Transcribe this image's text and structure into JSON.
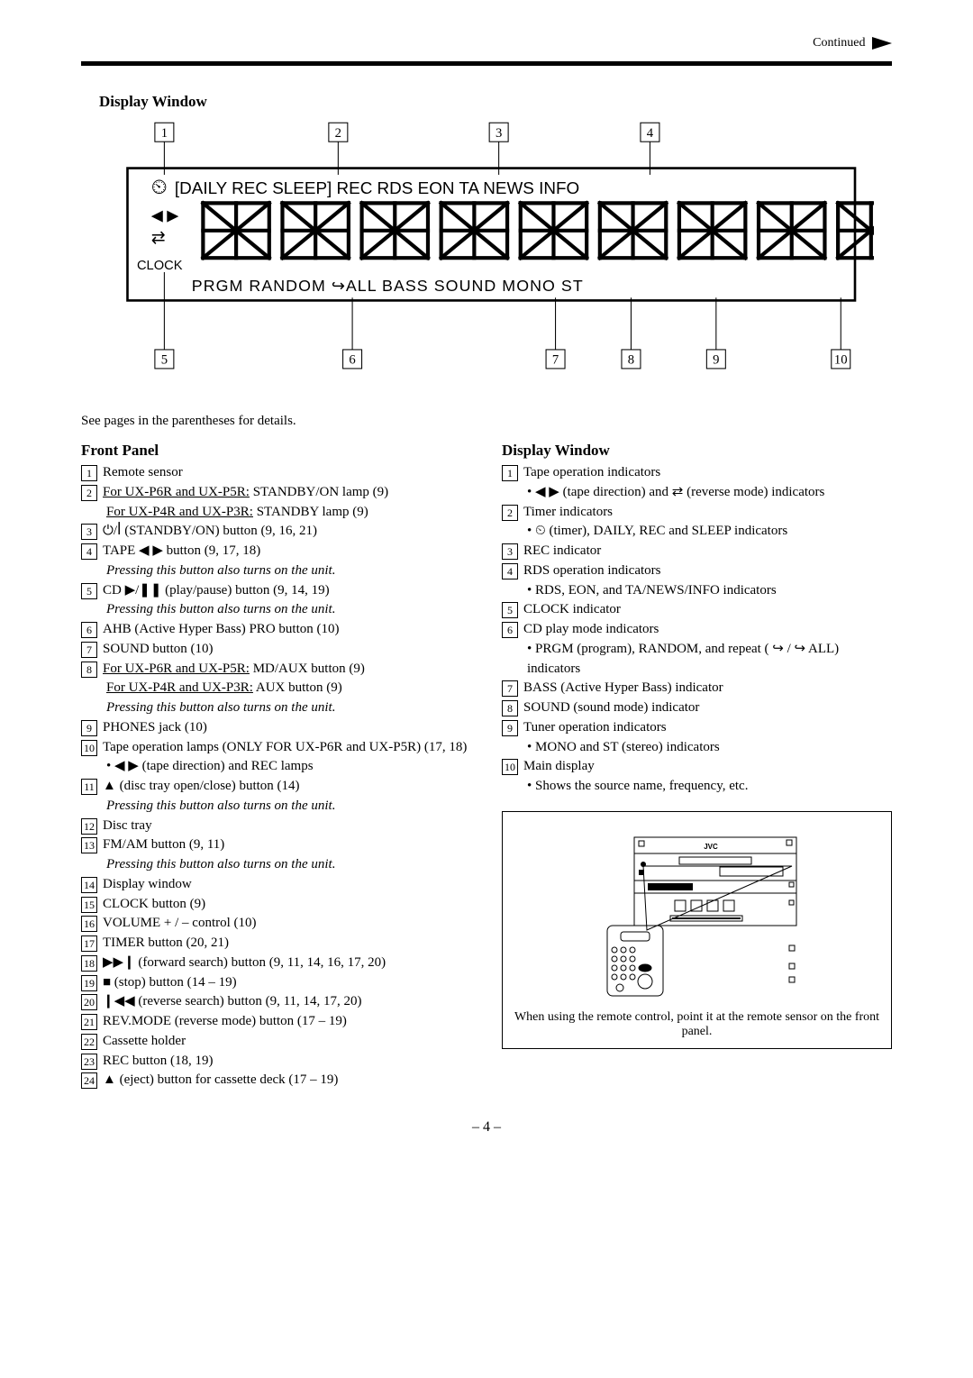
{
  "header": {
    "continued": "Continued"
  },
  "diagram": {
    "title": "Display Window",
    "callouts_top": [
      "1",
      "2",
      "3",
      "4"
    ],
    "callouts_bottom": [
      "5",
      "6",
      "7",
      "8",
      "9",
      "10"
    ],
    "display_lines": {
      "top_left_icon": "⏲",
      "line1": "[DAILY REC SLEEP]   REC   RDS EON  TA NEWS INFO",
      "left_icons": "◀ ▶",
      "reverse_icon": "⇄",
      "clock": "CLOCK",
      "bottom": "PRGM  RANDOM   ↪ALL         BASS  SOUND  MONO ST"
    }
  },
  "intro": "See pages in the parentheses for details.",
  "front_panel": {
    "title": "Front Panel",
    "items": [
      {
        "n": "1",
        "lines": [
          "Remote sensor"
        ]
      },
      {
        "n": "2",
        "lines": [
          {
            "t": "For UX-P6R and UX-P5R:",
            "u": true,
            "tail": " STANDBY/ON lamp (9)"
          },
          {
            "t": "For UX-P4R and UX-P3R:",
            "u": true,
            "tail": " STANDBY lamp (9)"
          }
        ]
      },
      {
        "n": "3",
        "lines": [
          "⏻/ꟾ (STANDBY/ON) button (9, 16, 21)"
        ]
      },
      {
        "n": "4",
        "lines": [
          "TAPE ◀ ▶ button (9, 17, 18)",
          {
            "t": "Pressing this button also turns on the unit.",
            "i": true
          }
        ]
      },
      {
        "n": "5",
        "lines": [
          "CD ▶/❚❚ (play/pause) button (9, 14, 19)",
          {
            "t": "Pressing this button also turns on the unit.",
            "i": true
          }
        ]
      },
      {
        "n": "6",
        "lines": [
          "AHB (Active Hyper Bass) PRO button (10)"
        ]
      },
      {
        "n": "7",
        "lines": [
          "SOUND button (10)"
        ]
      },
      {
        "n": "8",
        "lines": [
          {
            "t": "For UX-P6R and UX-P5R:",
            "u": true,
            "tail": " MD/AUX button (9)"
          },
          {
            "t": "For UX-P4R and UX-P3R:",
            "u": true,
            "tail": " AUX button  (9)"
          },
          {
            "t": "Pressing this button also turns on the unit.",
            "i": true
          }
        ]
      },
      {
        "n": "9",
        "lines": [
          "PHONES jack (10)"
        ]
      },
      {
        "n": "10",
        "lines": [
          "Tape operation lamps (ONLY FOR UX-P6R and UX-P5R) (17, 18)"
        ],
        "bullets": [
          "◀ ▶ (tape direction) and REC lamps"
        ]
      },
      {
        "n": "11",
        "lines": [
          "▲ (disc tray open/close) button (14)",
          {
            "t": "Pressing this button also turns on the unit.",
            "i": true
          }
        ]
      },
      {
        "n": "12",
        "lines": [
          "Disc tray"
        ]
      },
      {
        "n": "13",
        "lines": [
          "FM/AM button (9, 11)",
          {
            "t": "Pressing this button also turns on the unit.",
            "i": true
          }
        ]
      },
      {
        "n": "14",
        "lines": [
          "Display window"
        ]
      },
      {
        "n": "15",
        "lines": [
          "CLOCK button (9)"
        ]
      },
      {
        "n": "16",
        "lines": [
          "VOLUME + / – control (10)"
        ]
      },
      {
        "n": "17",
        "lines": [
          "TIMER button (20, 21)"
        ]
      },
      {
        "n": "18",
        "lines": [
          "▶▶❙ (forward search) button (9, 11, 14, 16, 17, 20)"
        ]
      },
      {
        "n": "19",
        "lines": [
          "■ (stop) button (14 – 19)"
        ]
      },
      {
        "n": "20",
        "lines": [
          "❙◀◀ (reverse search) button (9, 11, 14, 17, 20)"
        ]
      },
      {
        "n": "21",
        "lines": [
          "REV.MODE (reverse mode) button (17 – 19)"
        ]
      },
      {
        "n": "22",
        "lines": [
          "Cassette holder"
        ]
      },
      {
        "n": "23",
        "lines": [
          "REC button (18, 19)"
        ]
      },
      {
        "n": "24",
        "lines": [
          "▲ (eject) button for cassette deck (17 – 19)"
        ]
      }
    ]
  },
  "display_window": {
    "title": "Display Window",
    "items": [
      {
        "n": "1",
        "lines": [
          "Tape operation indicators"
        ],
        "bullets": [
          "◀ ▶ (tape direction) and  ⇄  (reverse mode) indicators"
        ]
      },
      {
        "n": "2",
        "lines": [
          "Timer indicators"
        ],
        "bullets": [
          "⏲ (timer), DAILY, REC and SLEEP indicators"
        ]
      },
      {
        "n": "3",
        "lines": [
          "REC indicator"
        ]
      },
      {
        "n": "4",
        "lines": [
          "RDS operation indicators"
        ],
        "bullets": [
          "RDS, EON, and TA/NEWS/INFO indicators"
        ]
      },
      {
        "n": "5",
        "lines": [
          "CLOCK indicator"
        ]
      },
      {
        "n": "6",
        "lines": [
          "CD play mode indicators"
        ],
        "bullets": [
          "PRGM (program), RANDOM, and repeat ( ↪ / ↪ ALL) indicators"
        ]
      },
      {
        "n": "7",
        "lines": [
          "BASS (Active Hyper Bass) indicator"
        ]
      },
      {
        "n": "8",
        "lines": [
          "SOUND (sound mode) indicator"
        ]
      },
      {
        "n": "9",
        "lines": [
          "Tuner operation indicators"
        ],
        "bullets": [
          "MONO and ST (stereo) indicators"
        ]
      },
      {
        "n": "10",
        "lines": [
          "Main display"
        ],
        "bullets": [
          "Shows the source name, frequency, etc."
        ]
      }
    ]
  },
  "device_illustration": {
    "brand": "JVC",
    "caption": "When using the remote control, point it at the remote sensor on the front panel."
  },
  "page_number": "4"
}
